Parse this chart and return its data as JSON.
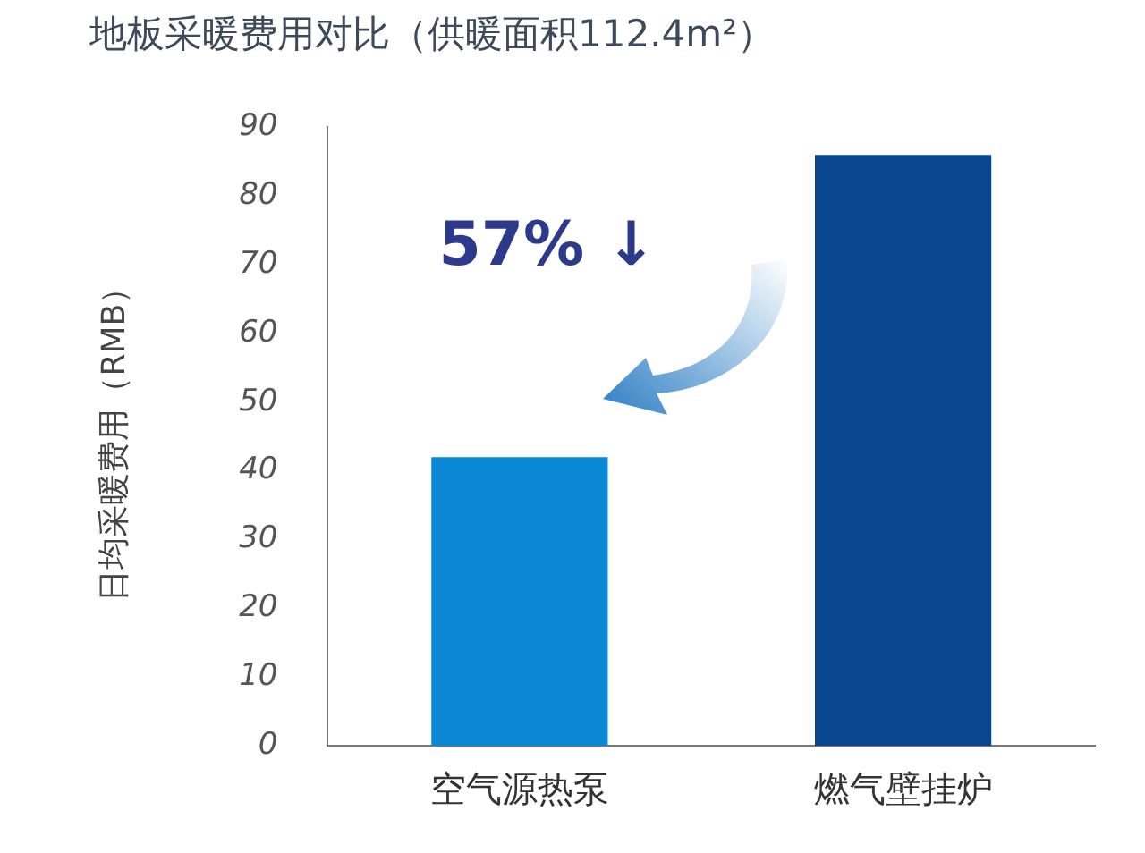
{
  "chart_data": {
    "type": "bar",
    "title": "地板采暖费用对比（供暖面积112.4m²）",
    "ylabel": "日均采暖费用（RMB）",
    "categories": [
      "空气源热泵",
      "燃气壁挂炉"
    ],
    "values": [
      42,
      86
    ],
    "colors": [
      "#0a88d6",
      "#0a4590"
    ],
    "ylim": [
      0,
      90
    ],
    "yticks": [
      0,
      10,
      20,
      30,
      40,
      50,
      60,
      70,
      80,
      90
    ],
    "grid": false,
    "legend": false,
    "annotations": [
      "57% ↓"
    ]
  }
}
